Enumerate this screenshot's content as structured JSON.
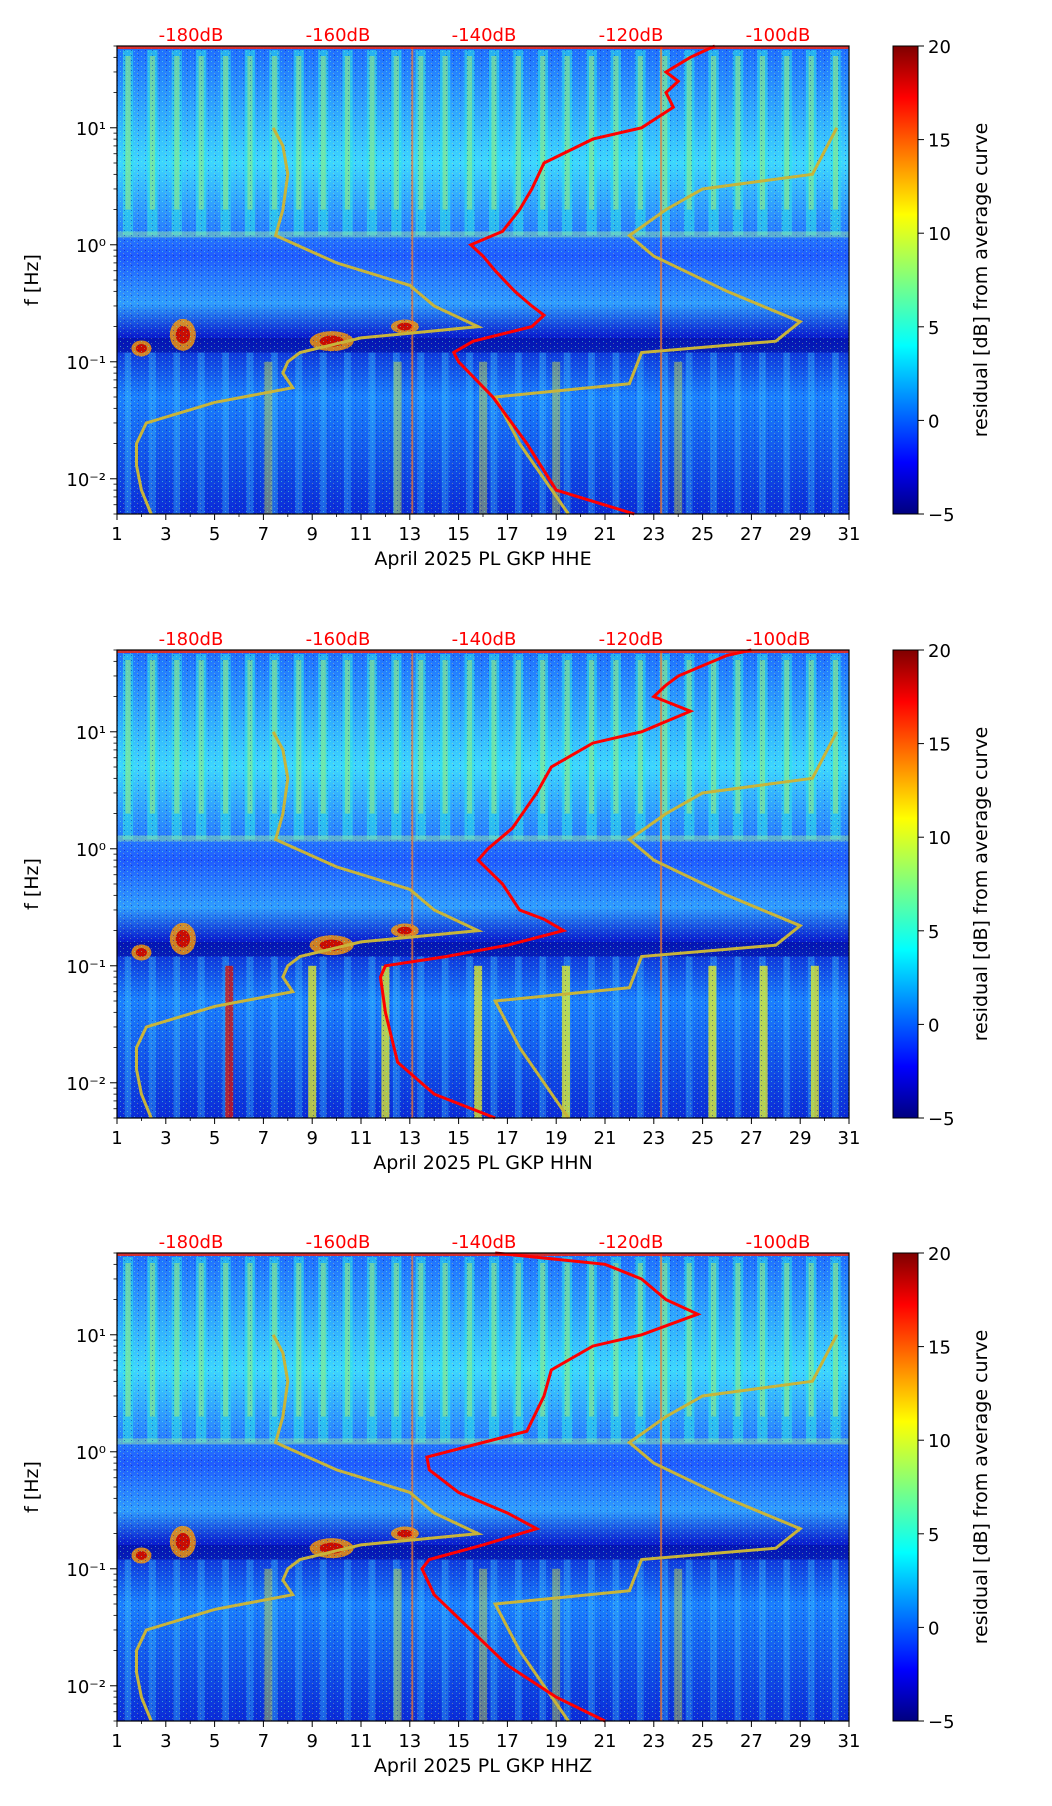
{
  "colors": {
    "reference_curve": "#ff0000",
    "bound_curve": "#c8b43a",
    "top_labels": "#ff0000"
  },
  "colorbar": {
    "min": -5,
    "max": 20,
    "ticks": [
      "20",
      "15",
      "10",
      "5",
      "0",
      "−5"
    ],
    "label": "residual [dB] from average curve"
  },
  "chart_data": [
    {
      "type": "heatmap",
      "title": "",
      "xlabel": "April 2025 PL GKP  HHE",
      "ylabel": "f [Hz]",
      "x_ticks": [
        "1",
        "3",
        "5",
        "7",
        "9",
        "11",
        "13",
        "15",
        "17",
        "19",
        "21",
        "23",
        "25",
        "27",
        "29",
        "31"
      ],
      "y_ticks": [
        "10¹",
        "10⁰",
        "10⁻¹",
        "10⁻²"
      ],
      "top_labels": [
        "-180dB",
        "-160dB",
        "-140dB",
        "-120dB",
        "-100dB"
      ],
      "xlim": [
        1,
        31
      ],
      "ylim_hz": [
        0.005,
        50
      ],
      "red_curve": [
        [
          0.005,
          22.2
        ],
        [
          0.008,
          19.0
        ],
        [
          0.02,
          17.8
        ],
        [
          0.05,
          16.4
        ],
        [
          0.1,
          15.0
        ],
        [
          0.12,
          14.8
        ],
        [
          0.15,
          15.6
        ],
        [
          0.2,
          18.0
        ],
        [
          0.25,
          18.5
        ],
        [
          0.3,
          18.0
        ],
        [
          0.4,
          17.3
        ],
        [
          0.6,
          16.5
        ],
        [
          0.8,
          16.0
        ],
        [
          1.0,
          15.5
        ],
        [
          1.3,
          16.8
        ],
        [
          2,
          17.5
        ],
        [
          3,
          18.0
        ],
        [
          5,
          18.5
        ],
        [
          8,
          20.5
        ],
        [
          10,
          22.5
        ],
        [
          15,
          23.8
        ],
        [
          20,
          23.5
        ],
        [
          25,
          24.0
        ],
        [
          30,
          23.5
        ],
        [
          40,
          24.5
        ],
        [
          50,
          25.5
        ]
      ],
      "yellow_left": [
        [
          0.005,
          2.4
        ],
        [
          0.008,
          2.0
        ],
        [
          0.013,
          1.8
        ],
        [
          0.02,
          1.8
        ],
        [
          0.03,
          2.2
        ],
        [
          0.045,
          5.0
        ],
        [
          0.06,
          8.2
        ],
        [
          0.08,
          7.8
        ],
        [
          0.1,
          8.0
        ],
        [
          0.12,
          8.5
        ],
        [
          0.16,
          11.0
        ],
        [
          0.2,
          15.8
        ],
        [
          0.3,
          14.0
        ],
        [
          0.45,
          13.0
        ],
        [
          0.7,
          10.0
        ],
        [
          1.2,
          7.5
        ],
        [
          2,
          7.8
        ],
        [
          4,
          8.0
        ],
        [
          7,
          7.8
        ],
        [
          10,
          7.4
        ]
      ],
      "yellow_right": [
        [
          0.005,
          19.5
        ],
        [
          0.01,
          18.5
        ],
        [
          0.02,
          17.5
        ],
        [
          0.05,
          16.5
        ],
        [
          0.065,
          22.0
        ],
        [
          0.12,
          22.5
        ],
        [
          0.15,
          28.0
        ],
        [
          0.22,
          29.0
        ],
        [
          0.4,
          26.0
        ],
        [
          0.8,
          23.0
        ],
        [
          1.2,
          22.0
        ],
        [
          2,
          23.5
        ],
        [
          3,
          25.0
        ],
        [
          4,
          29.5
        ],
        [
          10,
          30.5
        ]
      ]
    },
    {
      "type": "heatmap",
      "title": "",
      "xlabel": "April 2025 PL GKP  HHN",
      "ylabel": "f [Hz]",
      "x_ticks": [
        "1",
        "3",
        "5",
        "7",
        "9",
        "11",
        "13",
        "15",
        "17",
        "19",
        "21",
        "23",
        "25",
        "27",
        "29",
        "31"
      ],
      "y_ticks": [
        "10¹",
        "10⁰",
        "10⁻¹",
        "10⁻²"
      ],
      "top_labels": [
        "-180dB",
        "-160dB",
        "-140dB",
        "-120dB",
        "-100dB"
      ],
      "xlim": [
        1,
        31
      ],
      "ylim_hz": [
        0.005,
        50
      ],
      "red_curve": [
        [
          0.005,
          16.5
        ],
        [
          0.008,
          14.0
        ],
        [
          0.015,
          12.5
        ],
        [
          0.04,
          12.0
        ],
        [
          0.08,
          11.8
        ],
        [
          0.1,
          12.0
        ],
        [
          0.12,
          14.5
        ],
        [
          0.15,
          17.0
        ],
        [
          0.2,
          19.3
        ],
        [
          0.25,
          18.5
        ],
        [
          0.3,
          17.5
        ],
        [
          0.5,
          16.8
        ],
        [
          0.8,
          15.8
        ],
        [
          1.0,
          16.2
        ],
        [
          1.5,
          17.2
        ],
        [
          3,
          18.2
        ],
        [
          5,
          18.8
        ],
        [
          8,
          20.5
        ],
        [
          10,
          22.5
        ],
        [
          15,
          24.5
        ],
        [
          20,
          23.0
        ],
        [
          25,
          23.5
        ],
        [
          30,
          24.0
        ],
        [
          45,
          26.0
        ],
        [
          50,
          27.0
        ]
      ],
      "yellow_left": [
        [
          0.005,
          2.4
        ],
        [
          0.008,
          2.0
        ],
        [
          0.013,
          1.8
        ],
        [
          0.02,
          1.8
        ],
        [
          0.03,
          2.2
        ],
        [
          0.045,
          5.0
        ],
        [
          0.06,
          8.2
        ],
        [
          0.08,
          7.8
        ],
        [
          0.1,
          8.0
        ],
        [
          0.12,
          8.5
        ],
        [
          0.16,
          11.0
        ],
        [
          0.2,
          15.8
        ],
        [
          0.3,
          14.0
        ],
        [
          0.45,
          13.0
        ],
        [
          0.7,
          10.0
        ],
        [
          1.2,
          7.5
        ],
        [
          2,
          7.8
        ],
        [
          4,
          8.0
        ],
        [
          7,
          7.8
        ],
        [
          10,
          7.4
        ]
      ],
      "yellow_right": [
        [
          0.005,
          19.5
        ],
        [
          0.01,
          18.5
        ],
        [
          0.02,
          17.5
        ],
        [
          0.05,
          16.5
        ],
        [
          0.065,
          22.0
        ],
        [
          0.12,
          22.5
        ],
        [
          0.15,
          28.0
        ],
        [
          0.22,
          29.0
        ],
        [
          0.4,
          26.0
        ],
        [
          0.8,
          23.0
        ],
        [
          1.2,
          22.0
        ],
        [
          2,
          23.5
        ],
        [
          3,
          25.0
        ],
        [
          4,
          29.5
        ],
        [
          10,
          30.5
        ]
      ]
    },
    {
      "type": "heatmap",
      "title": "",
      "xlabel": "April 2025 PL GKP  HHZ",
      "ylabel": "f [Hz]",
      "x_ticks": [
        "1",
        "3",
        "5",
        "7",
        "9",
        "11",
        "13",
        "15",
        "17",
        "19",
        "21",
        "23",
        "25",
        "27",
        "29",
        "31"
      ],
      "y_ticks": [
        "10¹",
        "10⁰",
        "10⁻¹",
        "10⁻²"
      ],
      "top_labels": [
        "-180dB",
        "-160dB",
        "-140dB",
        "-120dB",
        "-100dB"
      ],
      "xlim": [
        1,
        31
      ],
      "ylim_hz": [
        0.005,
        50
      ],
      "red_curve": [
        [
          0.005,
          21.0
        ],
        [
          0.008,
          19.0
        ],
        [
          0.015,
          17.0
        ],
        [
          0.03,
          15.5
        ],
        [
          0.06,
          14.0
        ],
        [
          0.1,
          13.5
        ],
        [
          0.12,
          13.8
        ],
        [
          0.16,
          16.0
        ],
        [
          0.22,
          18.2
        ],
        [
          0.3,
          17.0
        ],
        [
          0.45,
          15.0
        ],
        [
          0.7,
          13.8
        ],
        [
          0.9,
          13.7
        ],
        [
          1.2,
          16.0
        ],
        [
          1.5,
          17.8
        ],
        [
          3,
          18.5
        ],
        [
          5,
          18.8
        ],
        [
          8,
          20.5
        ],
        [
          10,
          22.5
        ],
        [
          15,
          24.8
        ],
        [
          20,
          23.5
        ],
        [
          30,
          22.5
        ],
        [
          40,
          21.0
        ],
        [
          50,
          16.5
        ]
      ],
      "yellow_left": [
        [
          0.005,
          2.4
        ],
        [
          0.008,
          2.0
        ],
        [
          0.013,
          1.8
        ],
        [
          0.02,
          1.8
        ],
        [
          0.03,
          2.2
        ],
        [
          0.045,
          5.0
        ],
        [
          0.06,
          8.2
        ],
        [
          0.08,
          7.8
        ],
        [
          0.1,
          8.0
        ],
        [
          0.12,
          8.5
        ],
        [
          0.16,
          11.0
        ],
        [
          0.2,
          15.8
        ],
        [
          0.3,
          14.0
        ],
        [
          0.45,
          13.0
        ],
        [
          0.7,
          10.0
        ],
        [
          1.2,
          7.5
        ],
        [
          2,
          7.8
        ],
        [
          4,
          8.0
        ],
        [
          7,
          7.8
        ],
        [
          10,
          7.4
        ]
      ],
      "yellow_right": [
        [
          0.005,
          19.5
        ],
        [
          0.01,
          18.5
        ],
        [
          0.02,
          17.5
        ],
        [
          0.05,
          16.5
        ],
        [
          0.065,
          22.0
        ],
        [
          0.12,
          22.5
        ],
        [
          0.15,
          28.0
        ],
        [
          0.22,
          29.0
        ],
        [
          0.4,
          26.0
        ],
        [
          0.8,
          23.0
        ],
        [
          1.2,
          22.0
        ],
        [
          2,
          23.5
        ],
        [
          3,
          25.0
        ],
        [
          4,
          29.5
        ],
        [
          10,
          30.5
        ]
      ]
    }
  ]
}
